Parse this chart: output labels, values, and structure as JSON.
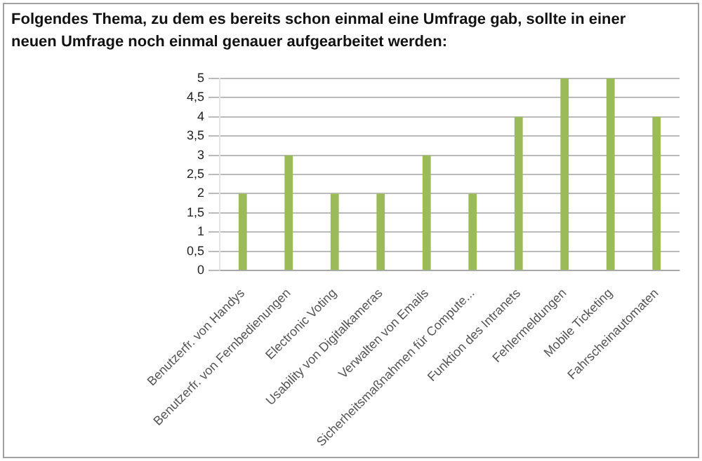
{
  "chart_data": {
    "type": "bar",
    "title": "Folgendes Thema, zu dem es bereits schon einmal eine Umfrage gab, sollte in einer neuen Umfrage noch einmal genauer aufgearbeitet werden:",
    "categories": [
      "Benutzerfr. von Handys",
      "Benutzerfr. von Fernbedienungen",
      "Electronic Voting",
      "Usability von Digitalkameras",
      "Verwalten von Emails",
      "Sicherheitsmaßnahmen für Compute...",
      "Funktion des Intranets",
      "Fehlermeldungen",
      "Mobile Ticketing",
      "Fahrscheinautomaten"
    ],
    "values": [
      2,
      3,
      2,
      2,
      3,
      2,
      4,
      5,
      5,
      4
    ],
    "color": "#9bbb59",
    "ylim": [
      0,
      5
    ],
    "yticks": [
      0,
      {
        "value": 0.5,
        "label": "0,5"
      },
      1,
      {
        "value": 1.5,
        "label": "1,5"
      },
      2,
      {
        "value": 2.5,
        "label": "2,5"
      },
      3,
      {
        "value": 3.5,
        "label": "3,5"
      },
      4,
      {
        "value": 4.5,
        "label": "4,5"
      },
      5
    ],
    "grid": "y"
  }
}
